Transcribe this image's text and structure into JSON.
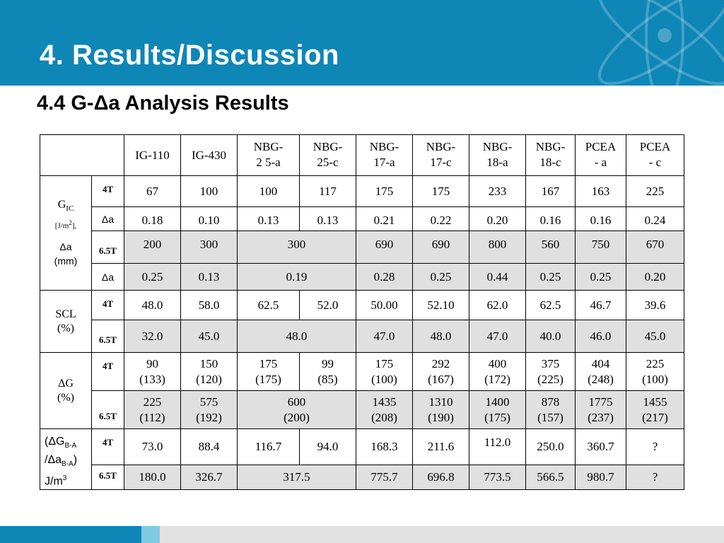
{
  "slide": {
    "title": "4. Results/Discussion",
    "subtitle": "4.4  G-Δa  Analysis Results"
  },
  "colors": {
    "header": "#0e86b6",
    "shaded_row": "#e0e0e0",
    "footer_light": "#7fcbe4",
    "footer_gray": "#e2e2e2"
  },
  "table": {
    "columns": [
      "IG-110",
      "IG-430",
      "NBG-\n2 5-a",
      "NBG-\n25-c",
      "NBG-\n17-a",
      "NBG-\n17-c",
      "NBG-\n18-a",
      "NBG-\n18-c",
      "PCEA\n- a",
      "PCEA\n- c"
    ],
    "groups": {
      "gic": {
        "label": "G",
        "label_sub": "IC",
        "unit_a": "[J/m",
        "unit_sup": "2",
        "unit_b": "],",
        "delta_a": "Δa",
        "mm": "(mm)",
        "rows": [
          {
            "sub": "4T",
            "values": [
              "67",
              "100",
              "100",
              "117",
              "175",
              "175",
              "233",
              "167",
              "163",
              "225"
            ]
          },
          {
            "sub": "Δa",
            "values": [
              "0.18",
              "0.10",
              "0.13",
              "0.13",
              "0.21",
              "0.22",
              "0.20",
              "0.16",
              "0.16",
              "0.24"
            ]
          },
          {
            "sub": "6.5T",
            "values": [
              "200",
              "300",
              "300",
              "690",
              "690",
              "800",
              "560",
              "750",
              "670"
            ]
          },
          {
            "sub": "Δa",
            "values": [
              "0.25",
              "0.13",
              "0.19",
              "0.28",
              "0.25",
              "0.44",
              "0.25",
              "0.25",
              "0.20"
            ]
          }
        ]
      },
      "scl": {
        "label_1": "SCL",
        "label_2": "(%)",
        "rows": [
          {
            "sub": "4T",
            "values": [
              "48.0",
              "58.0",
              "62.5",
              "52.0",
              "50.00",
              "52.10",
              "62.0",
              "62.5",
              "46.7",
              "39.6"
            ]
          },
          {
            "sub": "6.5T",
            "values": [
              "32.0",
              "45.0",
              "48.0",
              "47.0",
              "48.0",
              "47.0",
              "40.0",
              "46.0",
              "45.0"
            ]
          }
        ]
      },
      "dg": {
        "label_1": "ΔG",
        "label_2": "(%)",
        "rows": [
          {
            "sub": "4T",
            "values": [
              [
                "90",
                "(133)"
              ],
              [
                "150",
                "(120)"
              ],
              [
                "175",
                "(175)"
              ],
              [
                "99",
                "(85)"
              ],
              [
                "175",
                "(100)"
              ],
              [
                "292",
                "(167)"
              ],
              [
                "400",
                "(172)"
              ],
              [
                "375",
                "(225)"
              ],
              [
                "404",
                "(248)"
              ],
              [
                "225",
                "(100)"
              ]
            ]
          },
          {
            "sub": "6.5T",
            "values": [
              [
                "225",
                "(112)"
              ],
              [
                "575",
                "(192)"
              ],
              [
                "600",
                "(200)"
              ],
              [
                "1435",
                "(208)"
              ],
              [
                "1310",
                "(190)"
              ],
              [
                "1400",
                "(175)"
              ],
              [
                "878",
                "(157)"
              ],
              [
                "1775",
                "(237)"
              ],
              [
                "1455",
                "(217)"
              ]
            ]
          }
        ]
      },
      "ratio": {
        "l1a": "(ΔG",
        "l1s": "B-A",
        "l2a": "/Δa",
        "l2s": "B-A",
        "l2b": ")",
        "l3a": "J/m",
        "l3s": "3",
        "rows": [
          {
            "sub": "4T",
            "values": [
              "73.0",
              "88.4",
              "116.7",
              "94.0",
              "168.3",
              "211.6",
              "112.0",
              "250.0",
              "360.7",
              "?"
            ]
          },
          {
            "sub": "6.5T",
            "values": [
              "180.0",
              "326.7",
              "317.5",
              "775.7",
              "696.8",
              "773.5",
              "566.5",
              "980.7",
              "?"
            ]
          }
        ]
      }
    }
  }
}
